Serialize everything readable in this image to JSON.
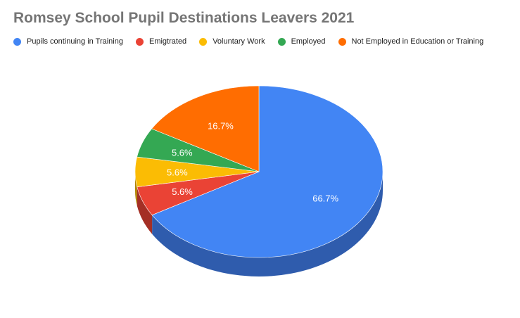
{
  "chart_data": {
    "type": "pie",
    "title": "Romsey School Pupil Destinations Leavers 2021",
    "legend_position": "top",
    "three_d": true,
    "slices": [
      {
        "name": "Pupils continuing in Training",
        "value": 66.7,
        "label": "66.7%",
        "color": "#4285f4",
        "side_color": "#2f5cad"
      },
      {
        "name": "Emigtrated",
        "value": 5.6,
        "label": "5.6%",
        "color": "#ea4335",
        "side_color": "#a42f25"
      },
      {
        "name": "Voluntary Work",
        "value": 5.6,
        "label": "5.6%",
        "color": "#fbbc04",
        "side_color": "#b08403"
      },
      {
        "name": "Employed",
        "value": 5.6,
        "label": "5.6%",
        "color": "#34a853",
        "side_color": "#24763a"
      },
      {
        "name": "Not Employed in Education or Training",
        "value": 16.7,
        "label": "16.7%",
        "color": "#ff6d01",
        "side_color": "#b34c01"
      }
    ]
  }
}
